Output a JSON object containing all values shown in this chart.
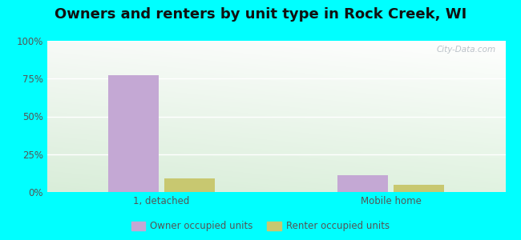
{
  "title": "Owners and renters by unit type in Rock Creek, WI",
  "categories": [
    "1, detached",
    "Mobile home"
  ],
  "owner_values": [
    77.0,
    11.0
  ],
  "renter_values": [
    9.0,
    5.0
  ],
  "owner_color": "#c4a8d4",
  "renter_color": "#c8c870",
  "ylim": [
    0,
    100
  ],
  "yticks": [
    0,
    25,
    50,
    75,
    100
  ],
  "ytick_labels": [
    "0%",
    "25%",
    "50%",
    "75%",
    "100%"
  ],
  "owner_label": "Owner occupied units",
  "renter_label": "Renter occupied units",
  "outer_bg": "#00ffff",
  "plot_bg_topleft": "#d4edd4",
  "plot_bg_topright": "#f0faf5",
  "plot_bg_bottom": "#c8e8c0",
  "title_fontsize": 13,
  "bar_width": 0.22,
  "watermark": "City-Data.com"
}
